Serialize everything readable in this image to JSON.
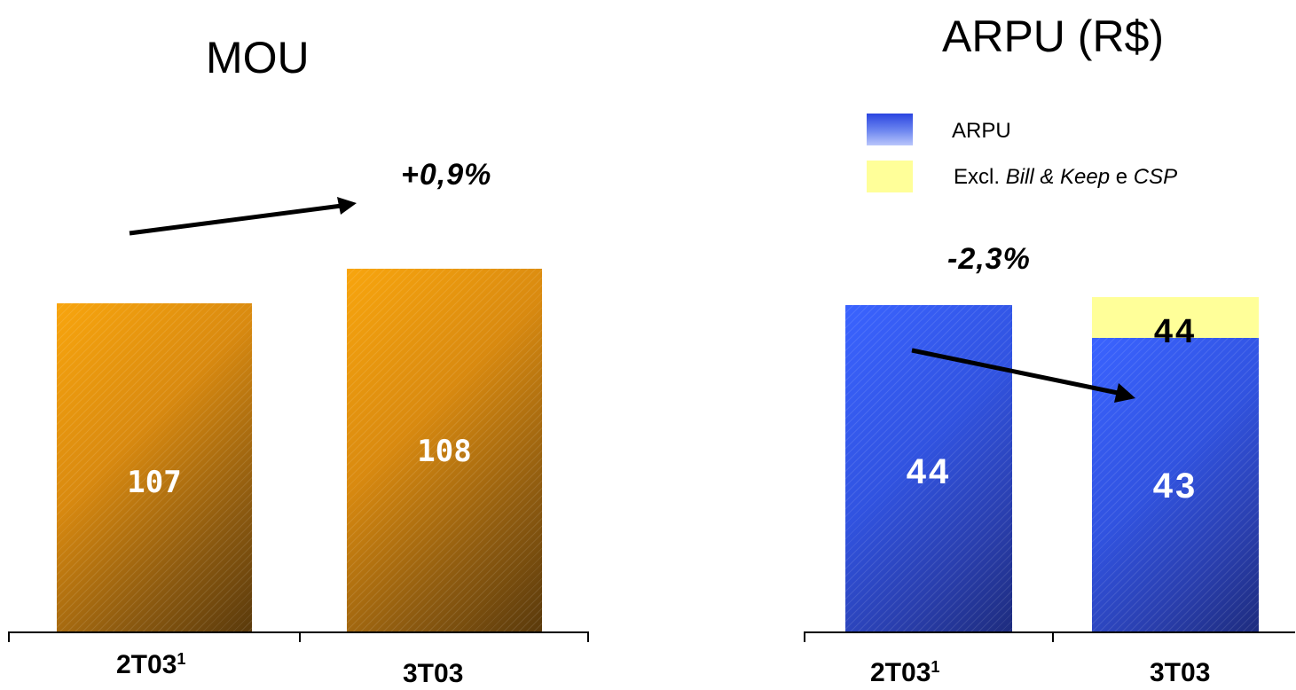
{
  "chart_data": [
    {
      "type": "bar",
      "title": "MOU",
      "categories": [
        "2T03¹",
        "3T03"
      ],
      "values": [
        107,
        108
      ],
      "value_labels": [
        "107",
        "108"
      ],
      "change_label": "+0,9%",
      "colors": {
        "bar": "#e8940f"
      }
    },
    {
      "type": "bar",
      "title": "ARPU (R$)",
      "categories": [
        "2T03¹",
        "3T03"
      ],
      "series": [
        {
          "name": "ARPU",
          "values": [
            44,
            43
          ],
          "value_labels": [
            "44",
            "43"
          ],
          "color": "#3557e8"
        },
        {
          "name": "Excl. Bill & Keep e CSP",
          "values": [
            null,
            44
          ],
          "value_labels": [
            "",
            "44"
          ],
          "color": "#ffff99"
        }
      ],
      "legend": {
        "position": "top-left",
        "items": [
          {
            "text": "ARPU"
          },
          {
            "prefix": "Excl. ",
            "italic1": "Bill & Keep",
            "mid": " e ",
            "italic2": "CSP"
          }
        ]
      },
      "change_label": "-2,3%"
    }
  ]
}
